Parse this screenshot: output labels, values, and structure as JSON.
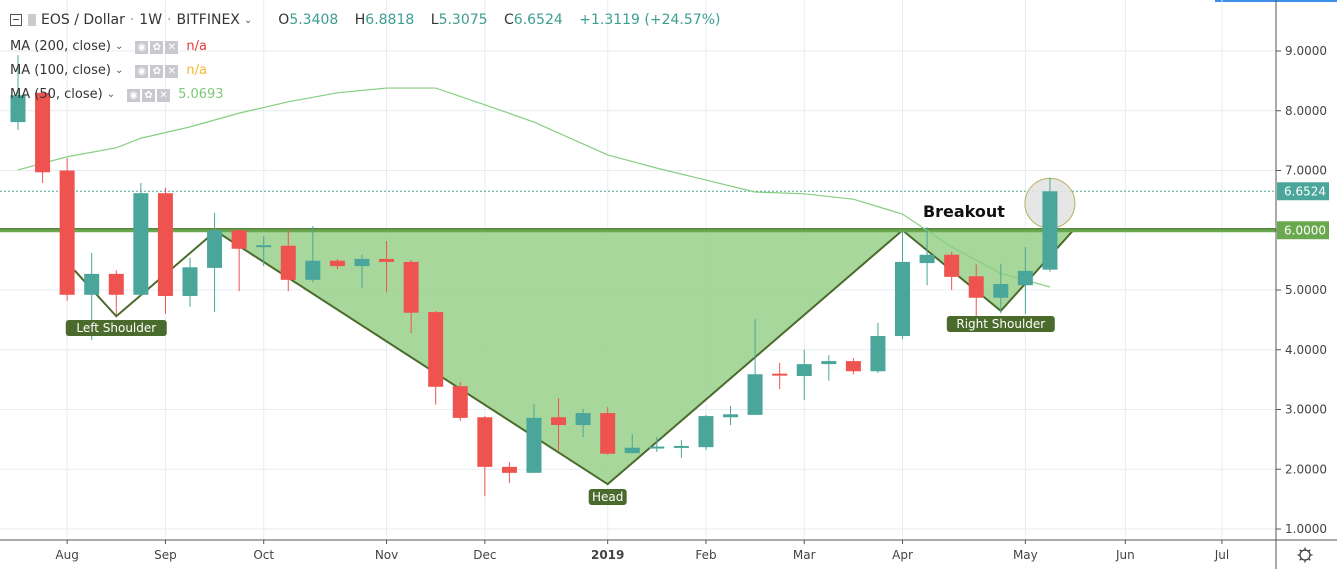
{
  "header": {
    "symbol": "EOS / Dollar",
    "interval": "1W",
    "exchange": "BITFINEX",
    "ohlc": {
      "o_label": "O",
      "o": "5.3408",
      "h_label": "H",
      "h": "6.8818",
      "l_label": "L",
      "l": "5.3075",
      "c_label": "C",
      "c": "6.6524",
      "change": "+1.3119 (+24.57%)"
    }
  },
  "indicators": [
    {
      "name": "MA (200, close)",
      "value": "n/a",
      "color": "#e53935"
    },
    {
      "name": "MA (100, close)",
      "value": "n/a",
      "color": "#f5b731"
    },
    {
      "name": "MA (50, close)",
      "value": "5.0693",
      "color": "#7fc87a"
    }
  ],
  "chart_data": {
    "type": "candlestick",
    "ylim": [
      0.8,
      9.8
    ],
    "y_ticks": [
      "1.0000",
      "2.0000",
      "3.0000",
      "4.0000",
      "5.0000",
      "6.0000",
      "7.0000",
      "8.0000",
      "9.0000"
    ],
    "x_ticks": [
      "Aug",
      "Sep",
      "Oct",
      "Nov",
      "Dec",
      "2019",
      "Feb",
      "Mar",
      "Apr",
      "May",
      "Jun",
      "Jul"
    ],
    "colors": {
      "up": "#4aa69a",
      "down": "#ef5350",
      "pattern_fill": "#a2d595",
      "pattern_line": "#4b6b2c",
      "level": "#6aa84f",
      "ma50": "#86cf80"
    },
    "candles_ohlc": [
      [
        7.81,
        8.93,
        7.68,
        8.26
      ],
      [
        8.3,
        8.3,
        6.79,
        6.97
      ],
      [
        7.0,
        7.21,
        4.82,
        4.92
      ],
      [
        4.92,
        5.62,
        4.16,
        5.27
      ],
      [
        5.27,
        5.33,
        4.58,
        4.92
      ],
      [
        4.92,
        6.79,
        4.9,
        6.62
      ],
      [
        6.62,
        6.71,
        4.6,
        4.9
      ],
      [
        4.9,
        5.54,
        4.72,
        5.38
      ],
      [
        5.37,
        6.29,
        4.63,
        6.0
      ],
      [
        6.0,
        6.02,
        4.98,
        5.69
      ],
      [
        5.72,
        5.9,
        5.4,
        5.75
      ],
      [
        5.74,
        6.02,
        4.98,
        5.17
      ],
      [
        5.17,
        6.07,
        5.13,
        5.49
      ],
      [
        5.49,
        5.52,
        5.35,
        5.4
      ],
      [
        5.4,
        5.59,
        5.03,
        5.52
      ],
      [
        5.52,
        5.82,
        4.96,
        5.47
      ],
      [
        5.47,
        5.5,
        4.28,
        4.62
      ],
      [
        4.63,
        4.65,
        3.08,
        3.38
      ],
      [
        3.39,
        3.46,
        2.81,
        2.86
      ],
      [
        2.87,
        2.89,
        1.55,
        2.04
      ],
      [
        2.04,
        2.12,
        1.77,
        1.94
      ],
      [
        1.94,
        3.09,
        1.94,
        2.86
      ],
      [
        2.87,
        3.19,
        2.31,
        2.74
      ],
      [
        2.74,
        3.01,
        2.54,
        2.94
      ],
      [
        2.94,
        3.04,
        2.24,
        2.26
      ],
      [
        2.27,
        2.59,
        2.27,
        2.36
      ],
      [
        2.36,
        2.54,
        2.29,
        2.38
      ],
      [
        2.37,
        2.49,
        2.19,
        2.39
      ],
      [
        2.37,
        2.91,
        2.32,
        2.89
      ],
      [
        2.87,
        3.06,
        2.74,
        2.92
      ],
      [
        2.91,
        4.51,
        2.91,
        3.59
      ],
      [
        3.6,
        3.78,
        3.34,
        3.58
      ],
      [
        3.56,
        4.0,
        3.16,
        3.76
      ],
      [
        3.76,
        3.91,
        3.48,
        3.81
      ],
      [
        3.81,
        3.86,
        3.59,
        3.64
      ],
      [
        3.64,
        4.45,
        3.61,
        4.23
      ],
      [
        4.23,
        6.0,
        4.18,
        5.47
      ],
      [
        5.45,
        6.05,
        5.08,
        5.59
      ],
      [
        5.59,
        5.64,
        5.0,
        5.22
      ],
      [
        5.23,
        5.43,
        4.53,
        4.87
      ],
      [
        4.87,
        5.44,
        4.61,
        5.1
      ],
      [
        5.08,
        5.72,
        4.6,
        5.32
      ],
      [
        5.3408,
        6.8818,
        5.3075,
        6.6524
      ]
    ],
    "ma50_points": [
      [
        0,
        7.01
      ],
      [
        2,
        7.23
      ],
      [
        4,
        7.38
      ],
      [
        5,
        7.54
      ],
      [
        7,
        7.73
      ],
      [
        9,
        7.96
      ],
      [
        11,
        8.15
      ],
      [
        13,
        8.3
      ],
      [
        15,
        8.38
      ],
      [
        17,
        8.38
      ],
      [
        19,
        8.1
      ],
      [
        21,
        7.81
      ],
      [
        24,
        7.26
      ],
      [
        26,
        7.04
      ],
      [
        28,
        6.84
      ],
      [
        30,
        6.64
      ],
      [
        32,
        6.61
      ],
      [
        34,
        6.52
      ],
      [
        36,
        6.27
      ],
      [
        38,
        5.72
      ],
      [
        40,
        5.28
      ],
      [
        42,
        5.05
      ]
    ],
    "neckline": 6.0,
    "last_price": "6.6524",
    "level_label": "6.0000",
    "pattern": {
      "left_shoulder": [
        [
          2.3,
          5.33
        ],
        [
          4,
          4.56
        ],
        [
          8,
          5.97
        ]
      ],
      "head_and_right": [
        [
          8,
          6.0
        ],
        [
          24,
          1.75
        ],
        [
          36,
          6.0
        ],
        [
          40,
          4.65
        ],
        [
          42.95,
          6.0
        ]
      ]
    },
    "annotations": {
      "left": "Left Shoulder",
      "head": "Head",
      "right": "Right Shoulder",
      "breakout": "Breakout"
    }
  }
}
